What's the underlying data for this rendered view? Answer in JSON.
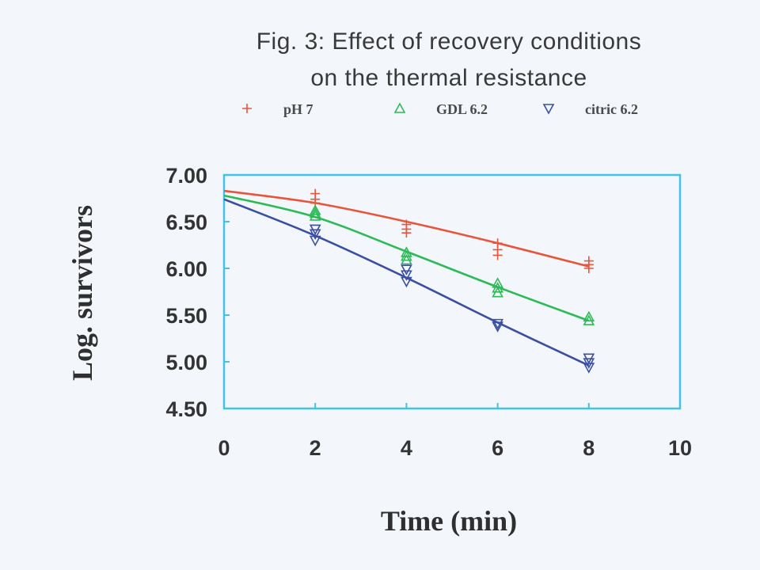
{
  "chart_data": {
    "type": "scatter",
    "title": "Fig. 3: Effect of recovery conditions",
    "subtitle": "on  the thermal resistance",
    "xlabel": "Time (min)",
    "ylabel": "Log. survivors",
    "xlim": [
      0,
      10
    ],
    "ylim": [
      4.5,
      7.0
    ],
    "x_ticks": [
      "0",
      "2",
      "4",
      "6",
      "8",
      "10"
    ],
    "y_ticks": [
      "4.50",
      "5.00",
      "5.50",
      "6.00",
      "6.50",
      "7.00"
    ],
    "grid": false,
    "legend_position": "top",
    "series": [
      {
        "name": "pH 7",
        "marker": "plus",
        "color": "#e8553b",
        "points": [
          [
            2,
            6.8
          ],
          [
            2,
            6.74
          ],
          [
            2,
            6.7
          ],
          [
            4,
            6.47
          ],
          [
            4,
            6.42
          ],
          [
            4,
            6.38
          ],
          [
            6,
            6.27
          ],
          [
            6,
            6.2
          ],
          [
            6,
            6.14
          ],
          [
            8,
            6.08
          ],
          [
            8,
            6.04
          ],
          [
            8,
            6.0
          ]
        ],
        "fit": [
          [
            0,
            6.83
          ],
          [
            2,
            6.7
          ],
          [
            4,
            6.5
          ],
          [
            6,
            6.27
          ],
          [
            8,
            6.02
          ]
        ]
      },
      {
        "name": "GDL 6.2",
        "marker": "triangle-up",
        "color": "#2dbb57",
        "points": [
          [
            2,
            6.62
          ],
          [
            2,
            6.59
          ],
          [
            2,
            6.56
          ],
          [
            4,
            6.17
          ],
          [
            4,
            6.13
          ],
          [
            4,
            6.09
          ],
          [
            6,
            5.84
          ],
          [
            6,
            5.79
          ],
          [
            6,
            5.74
          ],
          [
            8,
            5.48
          ],
          [
            8,
            5.44
          ]
        ],
        "fit": [
          [
            0,
            6.78
          ],
          [
            2,
            6.55
          ],
          [
            4,
            6.18
          ],
          [
            6,
            5.8
          ],
          [
            8,
            5.44
          ]
        ]
      },
      {
        "name": "citric 6.2",
        "marker": "triangle-down",
        "color": "#3a4fa3",
        "points": [
          [
            2,
            6.42
          ],
          [
            2,
            6.37
          ],
          [
            2,
            6.3
          ],
          [
            4,
            5.99
          ],
          [
            4,
            5.93
          ],
          [
            4,
            5.86
          ],
          [
            6,
            5.41
          ],
          [
            6,
            5.38
          ],
          [
            8,
            5.04
          ],
          [
            8,
            4.99
          ],
          [
            8,
            4.94
          ]
        ],
        "fit": [
          [
            0,
            6.74
          ],
          [
            2,
            6.35
          ],
          [
            4,
            5.9
          ],
          [
            6,
            5.42
          ],
          [
            8,
            4.96
          ]
        ]
      }
    ]
  }
}
